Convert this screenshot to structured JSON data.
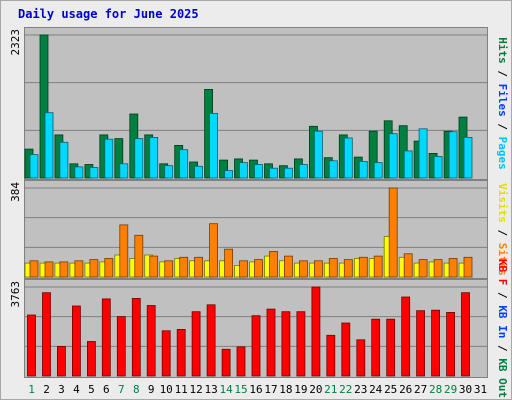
{
  "title": "Daily usage for June 2025",
  "chart_data": {
    "type": "bar",
    "title": "Daily usage for June 2025",
    "categories": [
      "1",
      "2",
      "3",
      "4",
      "5",
      "6",
      "7",
      "8",
      "9",
      "10",
      "11",
      "12",
      "13",
      "14",
      "15",
      "16",
      "17",
      "18",
      "19",
      "20",
      "21",
      "22",
      "23",
      "24",
      "25",
      "26",
      "27",
      "28",
      "29",
      "30",
      "31"
    ],
    "weekend_days": [
      "1",
      "7",
      "8",
      "14",
      "15",
      "21",
      "22",
      "28",
      "29"
    ],
    "panels": [
      {
        "id": "hits-files-pages",
        "max_label": "2323",
        "max": 2323,
        "axis_labels": [
          {
            "text": "Hits",
            "color": "#008040"
          },
          {
            "text": " / ",
            "color": "#000000"
          },
          {
            "text": "Files",
            "color": "#0040ff"
          },
          {
            "text": " / ",
            "color": "#000000"
          },
          {
            "text": "Pages",
            "color": "#00c0ff"
          }
        ],
        "series": [
          {
            "name": "Hits",
            "color": "#008040",
            "values": [
              470,
              2323,
              700,
              230,
              220,
              700,
              640,
              1040,
              700,
              230,
              530,
              260,
              1440,
              290,
              310,
              290,
              230,
              200,
              310,
              840,
              330,
              700,
              340,
              760,
              930,
              850,
              600,
              400,
              760,
              990,
              0
            ]
          },
          {
            "name": "Files",
            "color": "#00d8ff",
            "values": [
              380,
              1060,
              580,
              180,
              170,
              630,
              230,
              640,
              660,
              200,
              460,
              190,
              1050,
              120,
              250,
              220,
              160,
              160,
              220,
              760,
              280,
              650,
              270,
              250,
              720,
              440,
              800,
              350,
              750,
              660,
              0
            ]
          }
        ]
      },
      {
        "id": "visits-sites",
        "max_label": "384",
        "max": 384,
        "axis_labels": [
          {
            "text": "Visits",
            "color": "#e0e000"
          },
          {
            "text": " / ",
            "color": "#000000"
          },
          {
            "text": "Sites",
            "color": "#ff8000"
          }
        ],
        "series": [
          {
            "name": "Visits",
            "color": "#ffff00",
            "values": [
              60,
              60,
              60,
              60,
              60,
              65,
              95,
              80,
              95,
              65,
              80,
              70,
              70,
              70,
              50,
              65,
              90,
              70,
              60,
              60,
              60,
              60,
              80,
              80,
              175,
              85,
              60,
              65,
              60,
              60,
              0
            ]
          },
          {
            "name": "Sites",
            "color": "#ff8000",
            "values": [
              70,
              65,
              65,
              70,
              75,
              80,
              225,
              180,
              90,
              70,
              85,
              85,
              230,
              120,
              70,
              75,
              110,
              90,
              70,
              70,
              80,
              75,
              85,
              90,
              384,
              100,
              75,
              75,
              80,
              85,
              0
            ]
          }
        ]
      },
      {
        "id": "kb",
        "max_label": "3763",
        "max": 3763,
        "axis_labels": [
          {
            "text": "KB F",
            "color": "#ff0000"
          },
          {
            "text": " / ",
            "color": "#000000"
          },
          {
            "text": "KB In",
            "color": "#0040ff"
          },
          {
            "text": " / ",
            "color": "#000000"
          },
          {
            "text": "KB Out",
            "color": "#008040"
          }
        ],
        "series": [
          {
            "name": "KB F",
            "color": "#ff0000",
            "values": [
              2580,
              3520,
              1250,
              2960,
              1460,
              3260,
              2510,
              3280,
              2980,
              1910,
              1970,
              2720,
              3010,
              1130,
              1230,
              2550,
              2830,
              2720,
              2720,
              3763,
              1720,
              2240,
              1530,
              2400,
              2400,
              3340,
              2760,
              2780,
              2690,
              3520,
              0
            ]
          }
        ]
      }
    ]
  }
}
